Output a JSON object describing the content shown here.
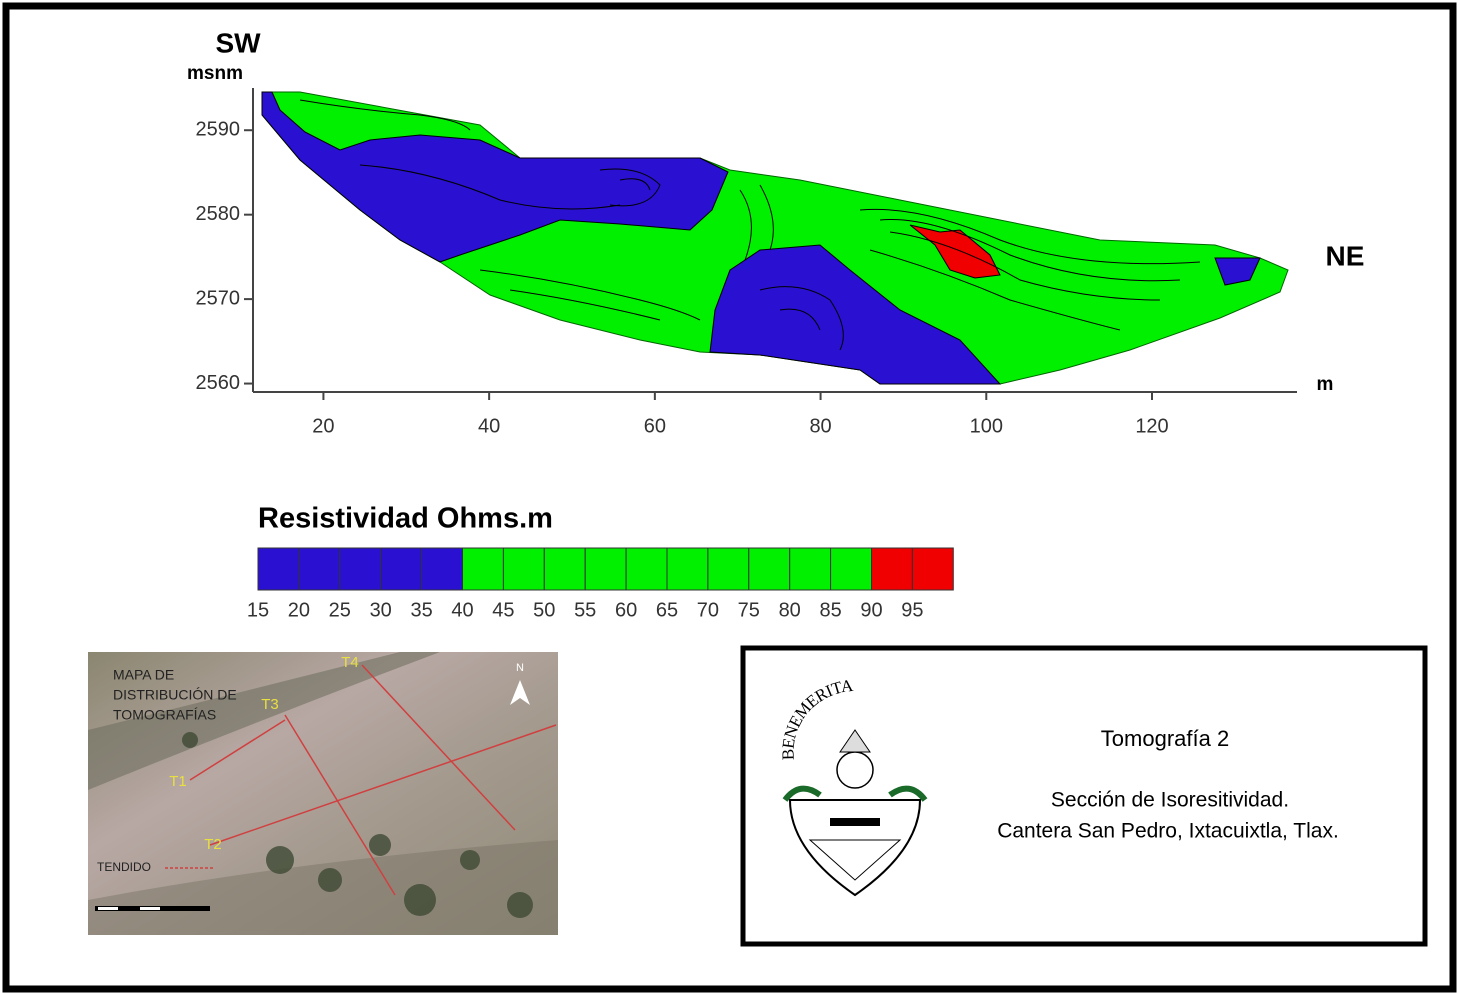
{
  "chart_data": {
    "type": "contour-section",
    "title_left": "SW",
    "title_right": "NE",
    "y_label": "msnm",
    "x_label": "m",
    "xlim": [
      11.5,
      137.5
    ],
    "ylim": [
      2559,
      2595
    ],
    "xticks": [
      20,
      40,
      60,
      80,
      100,
      120
    ],
    "yticks": [
      2560,
      2570,
      2580,
      2590
    ]
  },
  "legend": {
    "title": "Resistividad Ohms.m",
    "labels": [
      15,
      20,
      25,
      30,
      35,
      40,
      45,
      50,
      55,
      60,
      65,
      70,
      75,
      80,
      85,
      90,
      95
    ],
    "colors": [
      "#2a10d0",
      "#2a10d0",
      "#2a10d0",
      "#2a10d0",
      "#2a10d0",
      "#00f000",
      "#00f000",
      "#00f000",
      "#00f000",
      "#00f000",
      "#00f000",
      "#00f000",
      "#00f000",
      "#00f000",
      "#00f000",
      "#f00000",
      "#f00000"
    ]
  },
  "map": {
    "title_lines": [
      "MAPA DE",
      "DISTRIBUCIÓN DE",
      "TOMOGRAFÍAS"
    ],
    "labels": [
      "T1",
      "T2",
      "T3",
      "T4"
    ],
    "north": "N",
    "legend": "TENDIDO"
  },
  "info": {
    "logo_text": "BENEMERITA",
    "title": "Tomografía 2",
    "lines": [
      "Sección de Isoresitividad.",
      "Cantera San Pedro, Ixtacuixtla, Tlax."
    ]
  }
}
